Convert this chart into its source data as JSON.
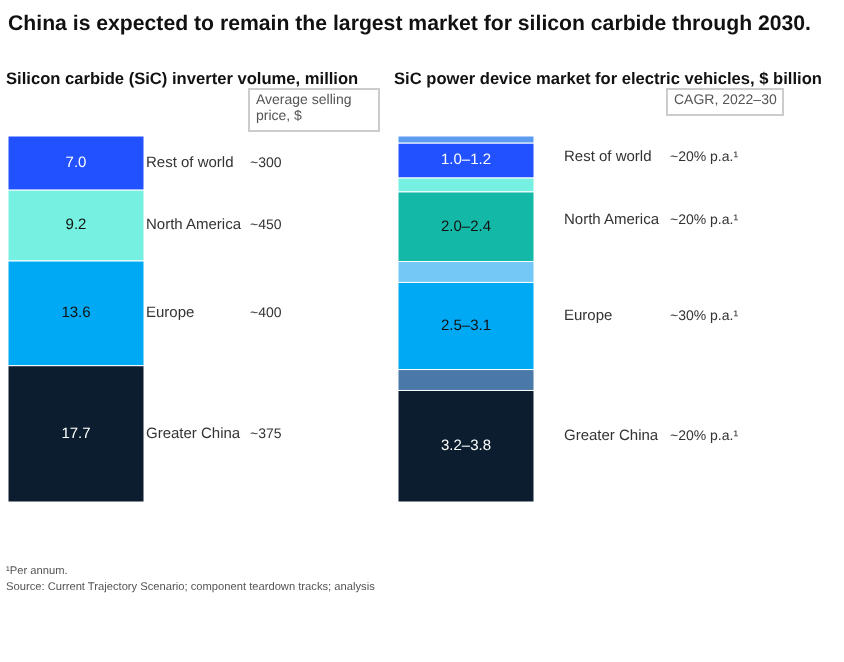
{
  "chart_data": [
    {
      "type": "bar",
      "stacked": true,
      "title": "China is expected to remain the largest market for silicon carbide through 2030.",
      "subtitle": "Silicon carbide (SiC) inverter volume, million",
      "categories": [
        null
      ],
      "series": [
        {
          "name": "Greater China",
          "color": "#0b1d2e",
          "values": [
            17.7
          ],
          "value_labels": [
            "17.7"
          ]
        },
        {
          "name": "Europe",
          "color": "#00a9f4",
          "values": [
            13.6
          ],
          "value_labels": [
            "13.6"
          ]
        },
        {
          "name": "North America",
          "color": "#76f0e0",
          "values": [
            9.2
          ],
          "value_labels": [
            "9.2"
          ]
        },
        {
          "name": "Rest of world",
          "color": "#2251ff",
          "values": [
            7.0
          ],
          "value_labels": [
            "7.0"
          ]
        }
      ],
      "annotations": [
        "Average selling price, $",
        "~375",
        "~400",
        "~450",
        "~300"
      ]
    },
    {
      "type": "bar",
      "stacked": true,
      "subtitle": "SiC power device market for electric vehicles, $ billion",
      "categories": [
        null
      ],
      "series": [
        {
          "name": "Greater China",
          "color": "#0b1d2e",
          "values": [
            3.2
          ],
          "value_labels": [
            "3.2–3.8"
          ]
        },
        {
          "color": "#4a78a8",
          "values": [
            0.6
          ]
        },
        {
          "name": "Europe",
          "color": "#00a9f4",
          "values": [
            2.5
          ],
          "value_labels": [
            "2.5–3.1"
          ]
        },
        {
          "color": "#73c8f5",
          "values": [
            0.6
          ]
        },
        {
          "name": "North America",
          "color": "#14b8a6",
          "values": [
            2.0
          ],
          "value_labels": [
            "2.0–2.4"
          ]
        },
        {
          "color": "#76f0e0",
          "values": [
            0.4
          ]
        },
        {
          "name": "Rest of world",
          "color": "#2251ff",
          "values": [
            1.0
          ],
          "value_labels": [
            "1.0–1.2"
          ]
        },
        {
          "color": "#5b9bf0",
          "values": [
            0.2
          ]
        }
      ],
      "annotations": [
        "CAGR, 2022–30",
        "~20% p.a.¹",
        "~30% p.a.¹",
        "~20% p.a.¹",
        "~20% p.a.¹",
        "¹Per annum.",
        "Source: Current Trajectory Scenario; component teardown tracks; analysis"
      ]
    }
  ]
}
